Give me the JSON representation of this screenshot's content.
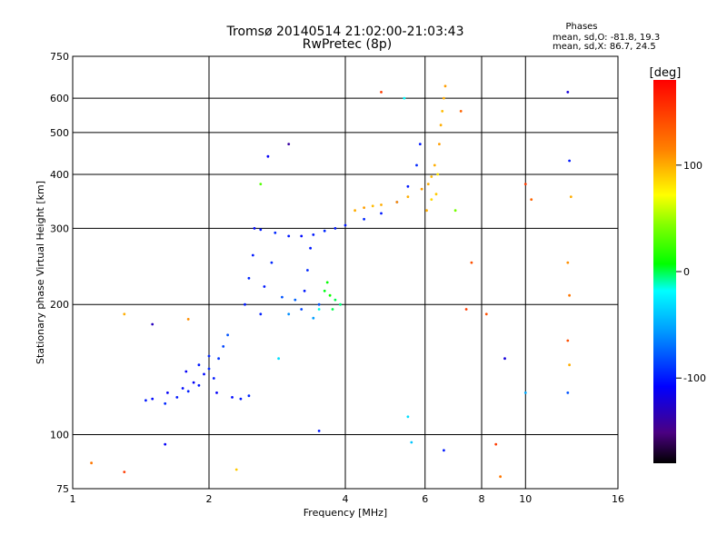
{
  "chart_data": {
    "type": "scatter",
    "title": "Tromsø 20140514 21:02:00-21:03:43",
    "subtitle": "RwPretec (8p)",
    "xlabel": "Frequency [MHz]",
    "ylabel": "Stationary phase Virtual Height [km]",
    "x_scale": "log",
    "y_scale": "log",
    "xlim": [
      1,
      16
    ],
    "ylim": [
      75,
      750
    ],
    "grid": true,
    "x_ticks": [
      1,
      2,
      4,
      6,
      8,
      10,
      16
    ],
    "y_ticks": [
      75,
      100,
      200,
      300,
      400,
      500,
      600,
      750
    ],
    "stats_header": "Phases",
    "stats_o": "mean, sd,O: -81.8, 19.3",
    "stats_x": "mean, sd,X:  86.7, 24.5",
    "colorbar": {
      "label": "[deg]",
      "min": -180,
      "max": 180,
      "ticks": [
        100,
        0,
        -100
      ]
    },
    "series": [
      {
        "points": [
          [
            1.45,
            120,
            -100
          ],
          [
            1.5,
            121,
            -105
          ],
          [
            1.6,
            118,
            -95
          ],
          [
            1.62,
            125,
            -110
          ],
          [
            1.7,
            122,
            -100
          ],
          [
            1.75,
            128,
            -105
          ],
          [
            1.8,
            126,
            -98
          ],
          [
            1.85,
            132,
            -110
          ],
          [
            1.9,
            130,
            -100
          ],
          [
            1.95,
            138,
            -105
          ],
          [
            2.0,
            142,
            -95
          ],
          [
            2.05,
            135,
            -100
          ],
          [
            2.1,
            150,
            -90
          ],
          [
            2.15,
            160,
            -85
          ],
          [
            2.2,
            170,
            -80
          ],
          [
            1.78,
            140,
            -110
          ],
          [
            1.9,
            145,
            -100
          ],
          [
            2.0,
            152,
            -95
          ],
          [
            2.08,
            125,
            -110
          ],
          [
            2.25,
            122,
            -105
          ],
          [
            2.35,
            121,
            -100
          ],
          [
            2.45,
            123,
            -95
          ],
          [
            2.4,
            200,
            -100
          ],
          [
            2.45,
            230,
            -95
          ],
          [
            2.5,
            260,
            -100
          ],
          [
            2.52,
            300,
            -105
          ],
          [
            2.6,
            298,
            -100
          ],
          [
            2.8,
            293,
            -95
          ],
          [
            3.0,
            288,
            -100
          ],
          [
            3.2,
            288,
            -105
          ],
          [
            3.4,
            290,
            -100
          ],
          [
            3.6,
            296,
            -95
          ],
          [
            3.8,
            300,
            -100
          ],
          [
            4.0,
            305,
            -100
          ],
          [
            4.4,
            315,
            -95
          ],
          [
            4.8,
            325,
            -100
          ],
          [
            5.2,
            345,
            -95
          ],
          [
            5.5,
            375,
            -100
          ],
          [
            5.75,
            420,
            -95
          ],
          [
            5.85,
            470,
            -100
          ],
          [
            2.6,
            190,
            -98
          ],
          [
            2.65,
            220,
            -100
          ],
          [
            2.75,
            250,
            -95
          ],
          [
            2.9,
            208,
            -80
          ],
          [
            3.1,
            205,
            -75
          ],
          [
            3.25,
            215,
            -100
          ],
          [
            3.3,
            240,
            -95
          ],
          [
            3.35,
            270,
            -100
          ],
          [
            3.2,
            195,
            -85
          ],
          [
            3.5,
            200,
            -80
          ],
          [
            3.0,
            190,
            -60
          ],
          [
            3.4,
            186,
            -55
          ],
          [
            2.85,
            150,
            -30
          ]
        ]
      },
      {
        "points": [
          [
            3.6,
            215,
            5
          ],
          [
            3.7,
            210,
            10
          ],
          [
            3.8,
            205,
            0
          ],
          [
            3.65,
            225,
            8
          ],
          [
            3.75,
            195,
            0
          ],
          [
            3.9,
            200,
            -5
          ],
          [
            3.5,
            195,
            -15
          ]
        ]
      },
      {
        "points": [
          [
            4.2,
            330,
            100
          ],
          [
            4.4,
            335,
            105
          ],
          [
            4.6,
            338,
            95
          ],
          [
            4.8,
            340,
            100
          ],
          [
            5.2,
            345,
            110
          ],
          [
            5.5,
            355,
            100
          ],
          [
            5.9,
            370,
            105
          ],
          [
            6.1,
            380,
            100
          ],
          [
            6.2,
            395,
            95
          ],
          [
            6.3,
            420,
            100
          ],
          [
            6.45,
            470,
            105
          ],
          [
            6.5,
            520,
            100
          ],
          [
            6.55,
            560,
            95
          ],
          [
            6.6,
            600,
            100
          ],
          [
            6.65,
            640,
            105
          ],
          [
            6.4,
            400,
            80
          ],
          [
            6.35,
            360,
            90
          ],
          [
            6.2,
            350,
            85
          ],
          [
            6.05,
            330,
            100
          ]
        ]
      },
      {
        "points": [
          [
            1.1,
            86,
            120
          ],
          [
            1.3,
            82,
            150
          ],
          [
            1.3,
            190,
            100
          ],
          [
            1.5,
            180,
            -130
          ],
          [
            1.6,
            95,
            -110
          ],
          [
            1.8,
            185,
            110
          ],
          [
            2.3,
            83,
            90
          ],
          [
            2.6,
            380,
            30
          ],
          [
            2.7,
            440,
            -110
          ],
          [
            3.0,
            470,
            -140
          ],
          [
            3.5,
            102,
            -100
          ],
          [
            4.8,
            620,
            150
          ],
          [
            5.4,
            600,
            -20
          ],
          [
            5.5,
            110,
            -30
          ],
          [
            5.6,
            96,
            -40
          ],
          [
            6.6,
            92,
            -100
          ],
          [
            7.0,
            330,
            40
          ],
          [
            7.2,
            560,
            130
          ],
          [
            7.4,
            195,
            150
          ],
          [
            7.6,
            250,
            140
          ],
          [
            8.2,
            190,
            140
          ],
          [
            8.6,
            95,
            150
          ],
          [
            8.8,
            80,
            120
          ],
          [
            9.0,
            150,
            -120
          ],
          [
            10.0,
            380,
            150
          ],
          [
            10.0,
            125,
            -50
          ],
          [
            10.3,
            350,
            130
          ],
          [
            12.4,
            620,
            -120
          ],
          [
            12.5,
            430,
            -100
          ],
          [
            12.6,
            355,
            100
          ],
          [
            12.4,
            250,
            110
          ],
          [
            12.5,
            210,
            120
          ],
          [
            12.4,
            165,
            140
          ],
          [
            12.5,
            145,
            100
          ],
          [
            12.4,
            125,
            -80
          ]
        ]
      }
    ]
  }
}
